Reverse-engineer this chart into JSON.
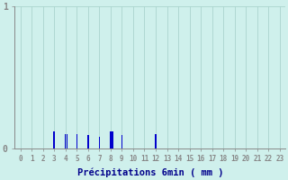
{
  "xlabel": "Précipitations 6min ( mm )",
  "xlim": [
    -0.5,
    23.5
  ],
  "ylim": [
    0,
    1.0
  ],
  "yticks": [
    0,
    1
  ],
  "xtick_labels": [
    "0",
    "1",
    "2",
    "3",
    "4",
    "5",
    "6",
    "7",
    "8",
    "9",
    "10",
    "11",
    "12",
    "13",
    "14",
    "15",
    "16",
    "17",
    "18",
    "19",
    "20",
    "21",
    "22",
    "23"
  ],
  "bars_x": [
    3,
    4,
    4.15,
    5,
    6,
    7,
    8,
    8.15,
    9,
    12
  ],
  "bars_h": [
    0.12,
    0.1,
    0.1,
    0.1,
    0.09,
    0.08,
    0.12,
    0.12,
    0.09,
    0.1
  ],
  "background_color": "#cff0ec",
  "grid_color": "#aad4ce",
  "bar_color": "#0000cc",
  "axis_color": "#888888",
  "text_color": "#00008b",
  "bar_width": 0.12,
  "xlabel_fontsize": 7.5,
  "xtick_fontsize": 5.5,
  "ytick_fontsize": 7.0
}
